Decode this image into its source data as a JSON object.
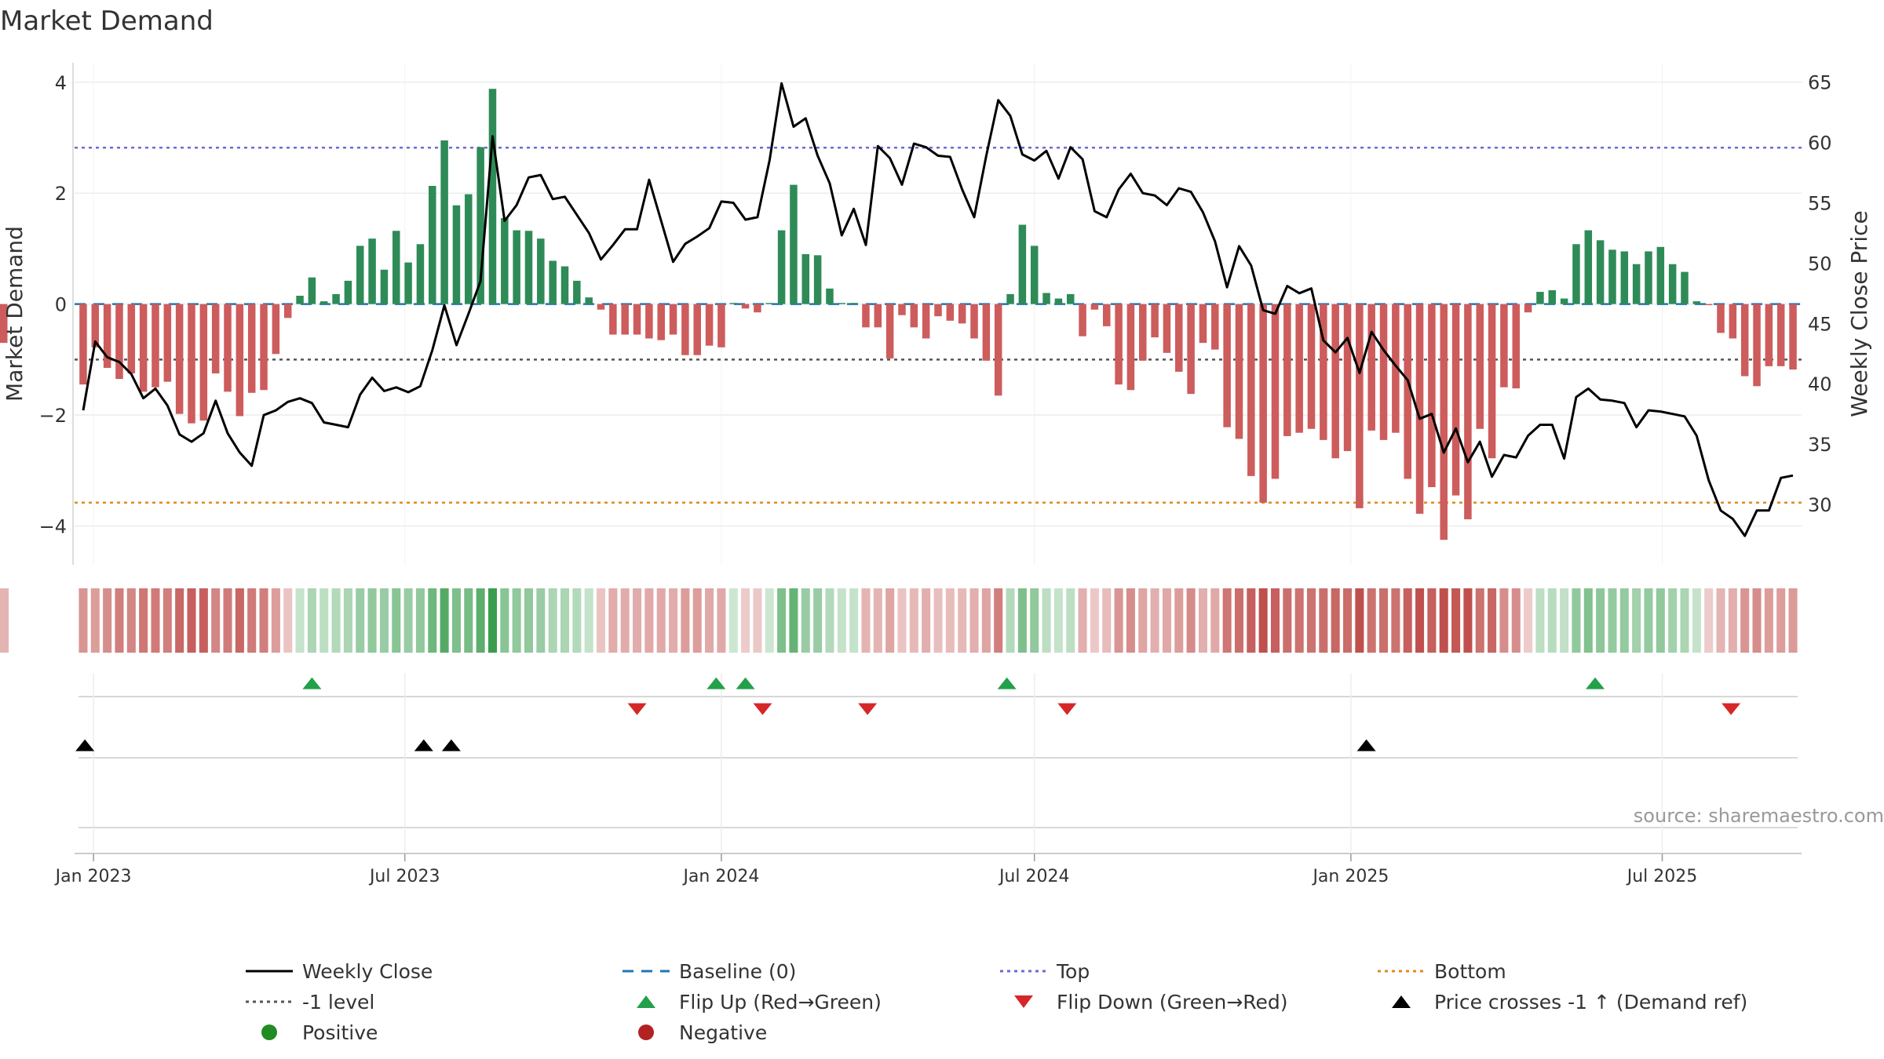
{
  "chart_data": {
    "type": "bar",
    "title": "Market Demand",
    "ylabel": "Market Demand",
    "y2label": "Weekly Close Price",
    "source": "source: sharemaestro.com",
    "ylim": [
      -4.7,
      4.35
    ],
    "y2lim": [
      25.0,
      66.6
    ],
    "yticks": [
      4,
      2,
      0,
      -2,
      -4
    ],
    "y2ticks": [
      65,
      60,
      55,
      50,
      45,
      40,
      35,
      30
    ],
    "x_tick_labels": [
      "Jan 2023",
      "Jul 2023",
      "Jan 2024",
      "Jul 2024",
      "Jan 2025",
      "Jul 2025"
    ],
    "x_tick_dates": [
      "2023-01-01",
      "2023-07-01",
      "2024-01-01",
      "2024-07-01",
      "2025-01-01",
      "2025-07-01"
    ],
    "x_dates": [
      "2022-12-26",
      "2023-01-02",
      "2023-01-09",
      "2023-01-16",
      "2023-01-23",
      "2023-01-30",
      "2023-02-06",
      "2023-02-13",
      "2023-02-20",
      "2023-02-27",
      "2023-03-06",
      "2023-03-13",
      "2023-03-20",
      "2023-03-27",
      "2023-04-03",
      "2023-04-10",
      "2023-04-17",
      "2023-04-24",
      "2023-05-01",
      "2023-05-08",
      "2023-05-15",
      "2023-05-22",
      "2023-05-29",
      "2023-06-05",
      "2023-06-12",
      "2023-06-19",
      "2023-06-26",
      "2023-07-03",
      "2023-07-10",
      "2023-07-17",
      "2023-07-24",
      "2023-07-31",
      "2023-08-07",
      "2023-08-14",
      "2023-08-21",
      "2023-08-28",
      "2023-09-04",
      "2023-09-11",
      "2023-09-18",
      "2023-09-25",
      "2023-10-02",
      "2023-10-09",
      "2023-10-16",
      "2023-10-23",
      "2023-10-30",
      "2023-11-06",
      "2023-11-13",
      "2023-11-20",
      "2023-11-27",
      "2023-12-04",
      "2023-12-11",
      "2023-12-18",
      "2023-12-25",
      "2024-01-01",
      "2024-01-08",
      "2024-01-15",
      "2024-01-22",
      "2024-01-29",
      "2024-02-05",
      "2024-02-12",
      "2024-02-19",
      "2024-02-26",
      "2024-03-04",
      "2024-03-11",
      "2024-03-18",
      "2024-03-25",
      "2024-04-01",
      "2024-04-08",
      "2024-04-15",
      "2024-04-22",
      "2024-04-29",
      "2024-05-06",
      "2024-05-13",
      "2024-05-20",
      "2024-05-27",
      "2024-06-03",
      "2024-06-10",
      "2024-06-17",
      "2024-06-24",
      "2024-07-01",
      "2024-07-08",
      "2024-07-15",
      "2024-07-22",
      "2024-07-29",
      "2024-08-05",
      "2024-08-12",
      "2024-08-19",
      "2024-08-26",
      "2024-09-02",
      "2024-09-09",
      "2024-09-16",
      "2024-09-23",
      "2024-09-30",
      "2024-10-07",
      "2024-10-14",
      "2024-10-21",
      "2024-10-28",
      "2024-11-04",
      "2024-11-11",
      "2024-11-18",
      "2024-11-25",
      "2024-12-02",
      "2024-12-09",
      "2024-12-16",
      "2024-12-23",
      "2024-12-30",
      "2025-01-06",
      "2025-01-13",
      "2025-01-20",
      "2025-01-27",
      "2025-02-03",
      "2025-02-10",
      "2025-02-17",
      "2025-02-24",
      "2025-03-03",
      "2025-03-10",
      "2025-03-17",
      "2025-03-24",
      "2025-03-31",
      "2025-04-07",
      "2025-04-14",
      "2025-04-21",
      "2025-04-28",
      "2025-05-05",
      "2025-05-12",
      "2025-05-19",
      "2025-05-26",
      "2025-06-02",
      "2025-06-09",
      "2025-06-16",
      "2025-06-23",
      "2025-06-30",
      "2025-07-07",
      "2025-07-14",
      "2025-07-21",
      "2025-07-28",
      "2025-08-04",
      "2025-08-11",
      "2025-08-18",
      "2025-08-25",
      "2025-09-01",
      "2025-09-08",
      "2025-09-15"
    ],
    "demand": [
      -1.45,
      -0.78,
      -1.15,
      -1.35,
      -1.25,
      -1.58,
      -1.5,
      -1.4,
      -1.98,
      -2.15,
      -2.1,
      -1.25,
      -1.58,
      -2.02,
      -1.6,
      -1.55,
      -0.9,
      -0.25,
      0.15,
      0.48,
      0.05,
      0.18,
      0.42,
      1.05,
      1.18,
      0.62,
      1.32,
      0.75,
      1.08,
      2.13,
      2.95,
      1.78,
      1.98,
      2.83,
      3.88,
      1.55,
      1.33,
      1.32,
      1.18,
      0.78,
      0.68,
      0.42,
      0.12,
      -0.1,
      -0.55,
      -0.55,
      -0.55,
      -0.62,
      -0.65,
      -0.55,
      -0.92,
      -0.92,
      -0.75,
      -0.78,
      0.02,
      -0.08,
      -0.15,
      0.02,
      1.33,
      2.15,
      0.9,
      0.88,
      0.28,
      0.02,
      0.02,
      -0.42,
      -0.42,
      -0.98,
      -0.2,
      -0.42,
      -0.62,
      -0.22,
      -0.3,
      -0.35,
      -0.62,
      -1.02,
      -1.65,
      0.18,
      1.43,
      1.05,
      0.2,
      0.1,
      0.18,
      -0.58,
      -0.1,
      -0.4,
      -1.45,
      -1.55,
      -1.02,
      -0.6,
      -0.88,
      -1.22,
      -1.62,
      -0.7,
      -0.82,
      -2.22,
      -2.43,
      -3.1,
      -3.58,
      -3.15,
      -2.38,
      -2.32,
      -2.25,
      -2.45,
      -2.78,
      -2.65,
      -3.68,
      -2.28,
      -2.45,
      -2.32,
      -3.15,
      -3.78,
      -3.3,
      -4.25,
      -3.45,
      -3.88,
      -2.25,
      -2.78,
      -1.5,
      -1.52,
      -0.15,
      0.22,
      0.25,
      0.1,
      1.08,
      1.33,
      1.15,
      0.98,
      0.95,
      0.72,
      0.95,
      1.03,
      0.72,
      0.58,
      0.05,
      -0.02,
      -0.52,
      -0.62,
      -1.3,
      -1.48,
      -1.12,
      -1.12,
      -1.18,
      -0.7,
      -0.55
    ],
    "price": [
      37.8,
      43.5,
      42.2,
      41.8,
      40.8,
      38.8,
      39.6,
      38.2,
      35.8,
      35.2,
      35.9,
      38.6,
      35.9,
      34.3,
      33.2,
      37.4,
      37.8,
      38.5,
      38.8,
      38.4,
      36.8,
      36.6,
      36.4,
      39.1,
      40.5,
      39.4,
      39.7,
      39.3,
      39.8,
      42.8,
      46.5,
      43.2,
      45.8,
      48.5,
      60.5,
      53.5,
      54.8,
      57.1,
      57.3,
      55.3,
      55.5,
      54.0,
      52.5,
      50.3,
      51.5,
      52.8,
      52.8,
      56.9,
      53.5,
      50.1,
      51.6,
      52.2,
      52.9,
      55.1,
      55.0,
      53.6,
      53.8,
      58.5,
      64.9,
      61.3,
      62.0,
      58.9,
      56.6,
      52.3,
      54.5,
      51.5,
      59.7,
      58.7,
      56.5,
      59.9,
      59.6,
      58.9,
      58.8,
      56.1,
      53.8,
      58.9,
      63.5,
      62.2,
      59.0,
      58.5,
      59.3,
      57.0,
      59.6,
      58.6,
      54.3,
      53.8,
      56.1,
      57.4,
      55.8,
      55.6,
      54.8,
      56.2,
      55.9,
      54.2,
      51.8,
      48.0,
      51.4,
      49.8,
      46.1,
      45.8,
      48.1,
      47.5,
      47.9,
      43.6,
      42.6,
      43.8,
      40.9,
      44.3,
      42.8,
      41.5,
      40.3,
      37.1,
      37.5,
      34.3,
      36.3,
      33.5,
      35.2,
      32.3,
      34.1,
      33.9,
      35.7,
      36.6,
      36.6,
      33.8,
      38.9,
      39.6,
      38.7,
      38.6,
      38.4,
      36.4,
      37.8,
      37.7,
      37.5,
      37.3,
      35.7,
      32.0,
      29.5,
      28.8,
      27.4,
      29.5,
      29.5,
      32.2,
      32.4
    ],
    "shade_indices": [
      0.55,
      0.5,
      0.6,
      0.7,
      0.65,
      0.75,
      0.72,
      0.7,
      0.85,
      0.9,
      0.9,
      0.65,
      0.72,
      0.85,
      0.72,
      0.7,
      0.5,
      0.25,
      0.2,
      0.35,
      0.25,
      0.3,
      0.35,
      0.45,
      0.5,
      0.45,
      0.55,
      0.45,
      0.5,
      0.7,
      0.85,
      0.6,
      0.65,
      0.8,
      1.0,
      0.55,
      0.5,
      0.5,
      0.45,
      0.35,
      0.35,
      0.3,
      0.2,
      0.25,
      0.4,
      0.4,
      0.4,
      0.42,
      0.42,
      0.4,
      0.5,
      0.5,
      0.42,
      0.42,
      0.15,
      0.2,
      0.22,
      0.15,
      0.6,
      0.75,
      0.45,
      0.45,
      0.3,
      0.2,
      0.2,
      0.35,
      0.35,
      0.45,
      0.25,
      0.32,
      0.38,
      0.28,
      0.3,
      0.32,
      0.38,
      0.45,
      0.7,
      0.3,
      0.6,
      0.5,
      0.25,
      0.2,
      0.25,
      0.38,
      0.22,
      0.3,
      0.55,
      0.6,
      0.45,
      0.38,
      0.42,
      0.5,
      0.62,
      0.38,
      0.42,
      0.75,
      0.8,
      0.9,
      1.0,
      0.9,
      0.8,
      0.78,
      0.78,
      0.8,
      0.85,
      0.82,
      1.0,
      0.78,
      0.8,
      0.78,
      0.9,
      1.0,
      0.9,
      1.0,
      0.95,
      1.0,
      0.78,
      0.85,
      0.6,
      0.6,
      0.2,
      0.25,
      0.28,
      0.22,
      0.5,
      0.58,
      0.52,
      0.48,
      0.48,
      0.4,
      0.48,
      0.5,
      0.4,
      0.35,
      0.2,
      0.2,
      0.35,
      0.38,
      0.55,
      0.6,
      0.5,
      0.5,
      0.52,
      0.38,
      0.35
    ],
    "reference_levels": [
      {
        "name": "Top",
        "value": 2.82,
        "color": "#6b6bd6",
        "style": "dotted"
      },
      {
        "name": "-1 level",
        "value": -1.0,
        "color": "#555555",
        "style": "dotted"
      },
      {
        "name": "Bottom",
        "value": -3.58,
        "color": "#e08a1e",
        "style": "dotted"
      },
      {
        "name": "Baseline (0)",
        "value": 0,
        "color": "#1f77b4",
        "style": "dashed"
      }
    ],
    "flip_up_dates": [
      "2023-05-08",
      "2023-12-29",
      "2024-01-15",
      "2024-06-15",
      "2025-05-23"
    ],
    "flip_down_dates": [
      "2023-11-13",
      "2024-01-25",
      "2024-03-26",
      "2024-07-20",
      "2025-08-10"
    ],
    "price_cross_dates": [
      "2022-12-27",
      "2023-07-12",
      "2023-07-28",
      "2025-01-10"
    ],
    "colors": {
      "positive": "#2e8b57",
      "negative": "#cd5c5c",
      "price_line": "#000000",
      "flip_up": "#22a04a",
      "flip_down": "#d62728",
      "price_cross": "#000000",
      "strip_positive": "#3a9d4e",
      "strip_negative": "#c0504d"
    },
    "legend": [
      {
        "label": "Weekly Close",
        "marker": "line-solid",
        "color": "#000000"
      },
      {
        "label": "Baseline (0)",
        "marker": "line-dashed",
        "color": "#1f77b4"
      },
      {
        "label": "Top",
        "marker": "line-dotted",
        "color": "#6b6bd6"
      },
      {
        "label": "Bottom",
        "marker": "line-dotted",
        "color": "#e08a1e"
      },
      {
        "label": "-1 level",
        "marker": "line-dotted",
        "color": "#555555"
      },
      {
        "label": "Flip Up (Red→Green)",
        "marker": "triangle-up",
        "color": "#22a04a"
      },
      {
        "label": "Flip Down (Green→Red)",
        "marker": "triangle-down",
        "color": "#d62728"
      },
      {
        "label": "Price crosses -1 ↑ (Demand ref)",
        "marker": "triangle-up",
        "color": "#000000"
      },
      {
        "label": "Positive",
        "marker": "circle",
        "color": "#228b22"
      },
      {
        "label": "Negative",
        "marker": "circle",
        "color": "#b22222"
      }
    ]
  }
}
